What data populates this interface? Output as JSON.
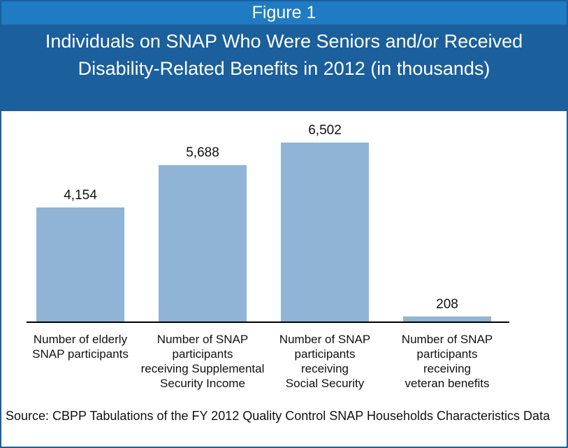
{
  "figure_label": "Figure 1",
  "title": "Individuals on SNAP Who Were Seniors and/or Received Disability-Related Benefits in 2012 (in thousands)",
  "source": "Source: CBPP Tabulations of the FY 2012 Quality Control SNAP Households Characteristics Data",
  "colors": {
    "bar": "#8fb4d6",
    "header_top": "#1f7cc4",
    "header_title": "#1b5f9c",
    "axis": "#000000"
  },
  "chart_data": {
    "type": "bar",
    "title": "Individuals on SNAP Who Were Seniors and/or Received Disability-Related Benefits in 2012 (in thousands)",
    "categories": [
      [
        "Number of elderly",
        "SNAP participants"
      ],
      [
        "Number of SNAP",
        "participants",
        "receiving Supplemental",
        "Security Income"
      ],
      [
        "Number of SNAP",
        "participants",
        "receiving",
        "Social Security"
      ],
      [
        "Number of SNAP",
        "participants",
        "receiving",
        "veteran benefits"
      ]
    ],
    "values": [
      4154,
      5688,
      6502,
      208
    ],
    "data_labels": [
      "4,154",
      "5,688",
      "6,502",
      "208"
    ],
    "xlabel": "",
    "ylabel": "",
    "ylim": [
      0,
      6502
    ],
    "grid": false,
    "legend": "none"
  }
}
